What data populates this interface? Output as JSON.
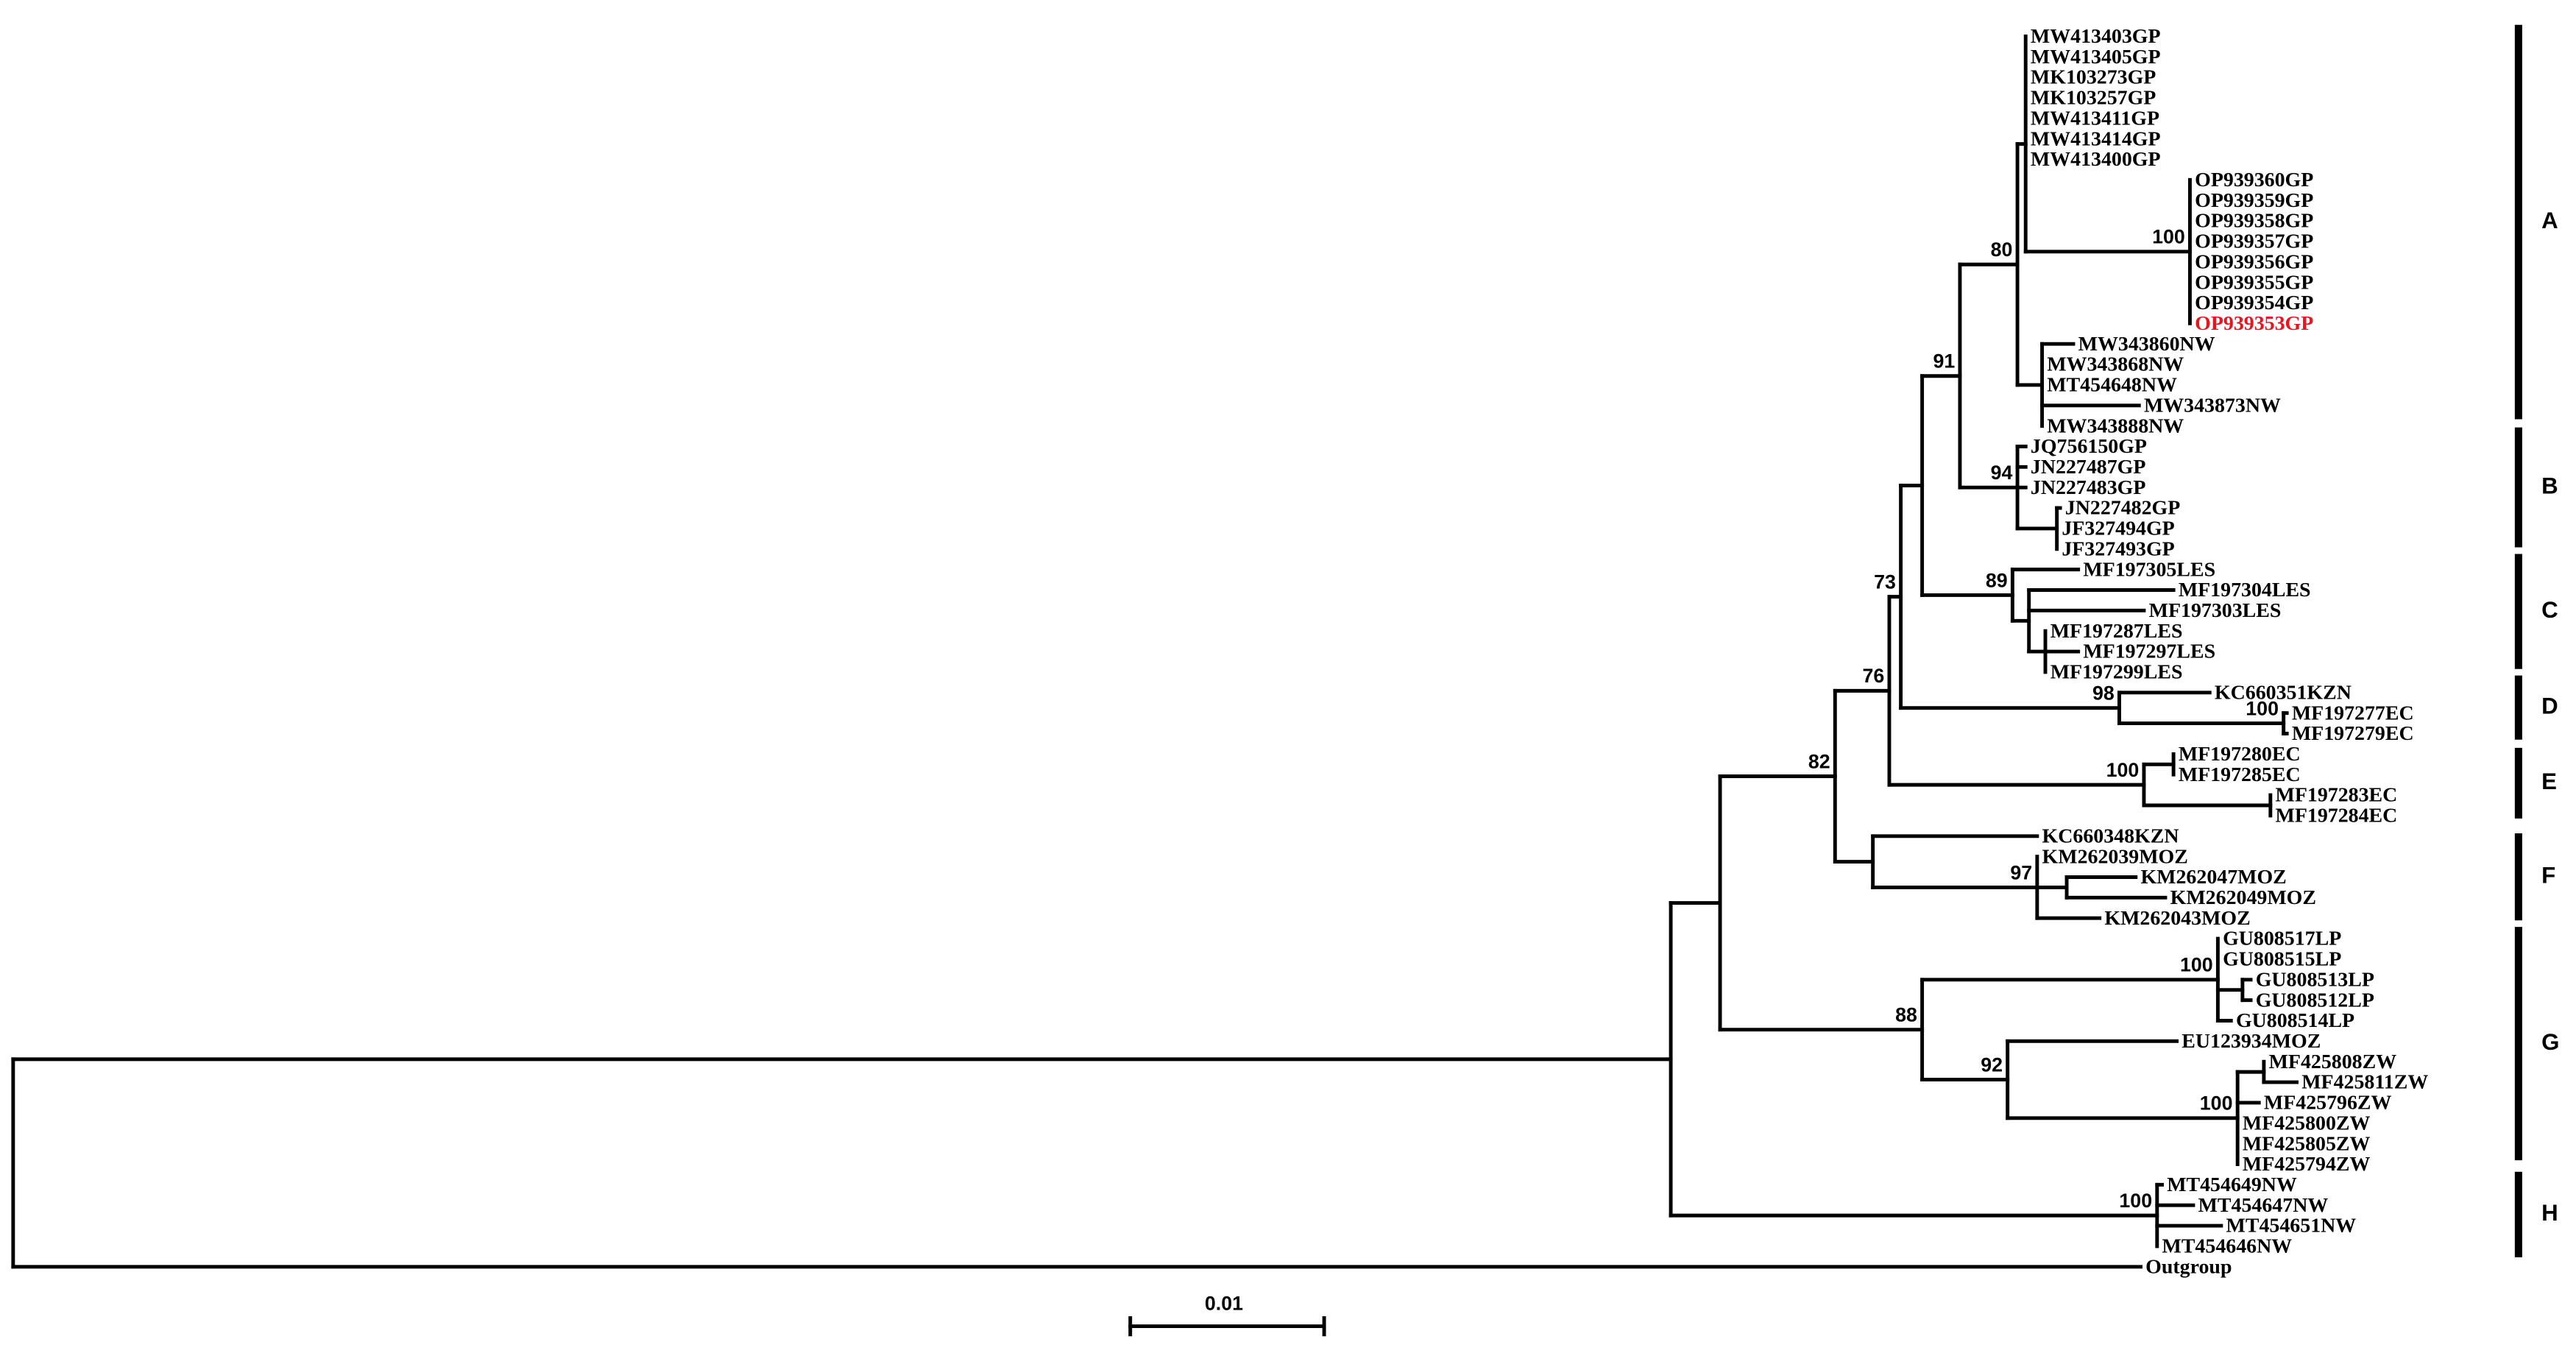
{
  "leaves": [
    {
      "label": "MW413403GP"
    },
    {
      "label": "MW413405GP"
    },
    {
      "label": "MK103273GP"
    },
    {
      "label": "MK103257GP"
    },
    {
      "label": "MW413411GP"
    },
    {
      "label": "MW413414GP"
    },
    {
      "label": "MW413400GP"
    },
    {
      "label": "OP939360GP"
    },
    {
      "label": "OP939359GP"
    },
    {
      "label": "OP939358GP"
    },
    {
      "label": "OP939357GP"
    },
    {
      "label": "OP939356GP"
    },
    {
      "label": "OP939355GP"
    },
    {
      "label": "OP939354GP"
    },
    {
      "label": "OP939353GP",
      "color": "#e8141e"
    },
    {
      "label": "MW343860NW"
    },
    {
      "label": "MW343868NW"
    },
    {
      "label": "MT454648NW"
    },
    {
      "label": "MW343873NW"
    },
    {
      "label": "MW343888NW"
    },
    {
      "label": "JQ756150GP"
    },
    {
      "label": "JN227487GP"
    },
    {
      "label": "JN227483GP"
    },
    {
      "label": "JN227482GP"
    },
    {
      "label": "JF327494GP"
    },
    {
      "label": "JF327493GP"
    },
    {
      "label": "MF197305LES"
    },
    {
      "label": "MF197304LES"
    },
    {
      "label": "MF197303LES"
    },
    {
      "label": "MF197287LES"
    },
    {
      "label": "MF197297LES"
    },
    {
      "label": "MF197299LES"
    },
    {
      "label": "KC660351KZN"
    },
    {
      "label": "MF197277EC"
    },
    {
      "label": "MF197279EC"
    },
    {
      "label": "MF197280EC"
    },
    {
      "label": "MF197285EC"
    },
    {
      "label": "MF197283EC"
    },
    {
      "label": "MF197284EC"
    },
    {
      "label": "KC660348KZN"
    },
    {
      "label": "KM262039MOZ"
    },
    {
      "label": "KM262047MOZ"
    },
    {
      "label": "KM262049MOZ"
    },
    {
      "label": "KM262043MOZ"
    },
    {
      "label": "GU808517LP"
    },
    {
      "label": "GU808515LP"
    },
    {
      "label": "GU808513LP"
    },
    {
      "label": "GU808512LP"
    },
    {
      "label": "GU808514LP"
    },
    {
      "label": "EU123934MOZ"
    },
    {
      "label": "MF425808ZW"
    },
    {
      "label": "MF425811ZW"
    },
    {
      "label": "MF425796ZW"
    },
    {
      "label": "MF425800ZW"
    },
    {
      "label": "MF425805ZW"
    },
    {
      "label": "MF425794ZW"
    },
    {
      "label": "MT454649NW"
    },
    {
      "label": "MT454647NW"
    },
    {
      "label": "MT454651NW"
    },
    {
      "label": "MT454646NW"
    },
    {
      "label": "Outgroup"
    }
  ],
  "bootstrap": [
    100,
    80,
    91,
    94,
    89,
    73,
    98,
    100,
    76,
    100,
    82,
    97,
    88,
    100,
    92,
    100,
    100
  ],
  "clades": [
    "A",
    "B",
    "C",
    "D",
    "E",
    "F",
    "G",
    "H"
  ],
  "scale_bar": "0.01"
}
